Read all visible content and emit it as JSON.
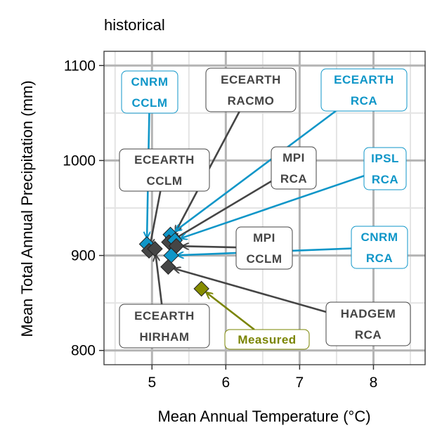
{
  "chart_data": {
    "type": "scatter",
    "title": "",
    "subtitle": "historical",
    "xlabel": "Mean Annual Temperature (°C)",
    "ylabel": "Mean Total Annual Precipitation (mm)",
    "xlim": [
      4.35,
      8.7
    ],
    "ylim": [
      785,
      1115
    ],
    "x_ticks": [
      5,
      6,
      7,
      8
    ],
    "y_ticks": [
      800,
      900,
      1000,
      1100
    ],
    "x_tick_labels": [
      "5",
      "6",
      "7",
      "8"
    ],
    "y_tick_labels": [
      "800",
      "900",
      "1000",
      "1100"
    ],
    "grid": true,
    "colors": {
      "highlight": "#0f96c8",
      "other": "#454545",
      "measured": "#7a8400",
      "measured_fill": "#868c00"
    },
    "points": [
      {
        "label": "CNRM\nCCLM",
        "x": 4.93,
        "y": 912,
        "group": "highlight"
      },
      {
        "label": "ECEARTH\nRACMO",
        "x": 5.28,
        "y": 919,
        "group": "other"
      },
      {
        "label": "ECEARTH\nRCA",
        "x": 5.25,
        "y": 922,
        "group": "highlight"
      },
      {
        "label": "ECEARTH\nCCLM",
        "x": 4.96,
        "y": 905,
        "group": "other"
      },
      {
        "label": "MPI\nRCA",
        "x": 5.23,
        "y": 914,
        "group": "other"
      },
      {
        "label": "IPSL\nRCA",
        "x": 5.31,
        "y": 916,
        "group": "highlight"
      },
      {
        "label": "MPI\nCCLM",
        "x": 5.33,
        "y": 910,
        "group": "other"
      },
      {
        "label": "CNRM\nRCA",
        "x": 5.26,
        "y": 900,
        "group": "highlight"
      },
      {
        "label": "ECEARTH\nHIRHAM",
        "x": 5.04,
        "y": 907,
        "group": "other"
      },
      {
        "label": "HADGEM\nRCA",
        "x": 5.22,
        "y": 888,
        "group": "other"
      },
      {
        "label": "Measured",
        "x": 5.67,
        "y": 865,
        "group": "measured"
      }
    ]
  }
}
